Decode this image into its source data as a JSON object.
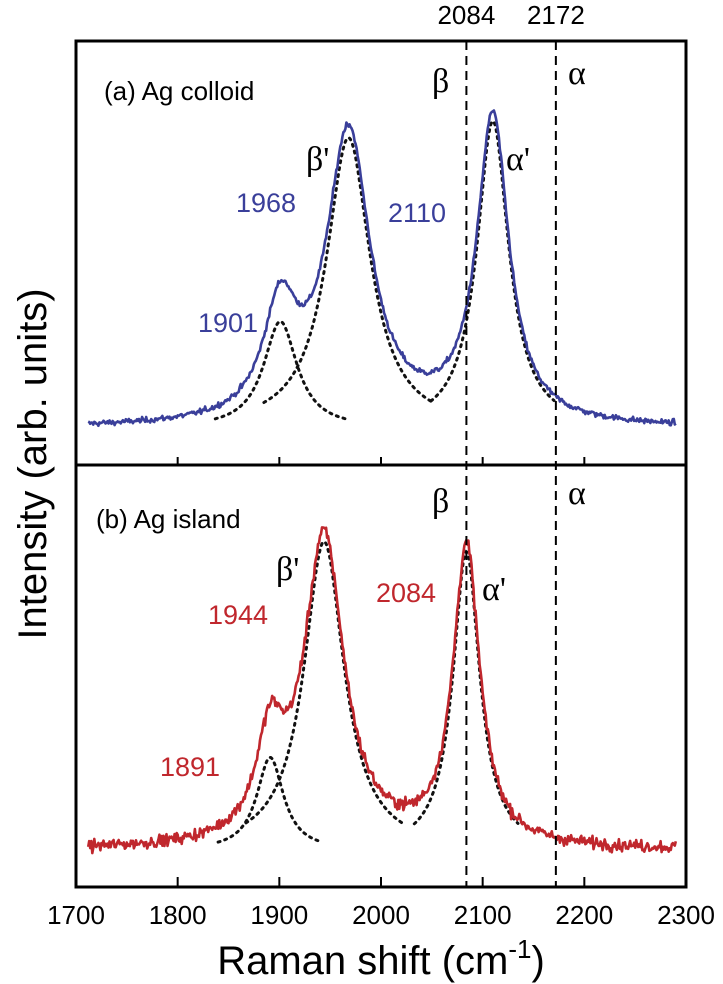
{
  "chart_data": {
    "type": "line",
    "xlabel": "Raman shift (cm",
    "xlabel_superscript": "-1",
    "xlabel_close": ")",
    "ylabel": "Intensity (arb. units)",
    "xlim": [
      1700,
      2300
    ],
    "x_ticks": [
      "1700",
      "1800",
      "1900",
      "2000",
      "2100",
      "2200",
      "2300"
    ],
    "reference_lines": [
      {
        "x": 2084,
        "label": "2084",
        "mode": "β"
      },
      {
        "x": 2172,
        "label": "2172",
        "mode": "α"
      }
    ],
    "panels": [
      {
        "label": "(a) Ag colloid",
        "color": "#3a3f9a",
        "beta_label": "β",
        "alpha_label": "α",
        "beta_prime_label": "β'",
        "alpha_prime_label": "α'",
        "baseline": 0.02,
        "peaks": [
          {
            "center": 1901,
            "width": 20,
            "height": 0.32,
            "label": "1901"
          },
          {
            "center": 1968,
            "width": 26,
            "height": 0.87,
            "label": "1968"
          },
          {
            "center": 2110,
            "width": 19,
            "height": 0.92,
            "label": "2110"
          }
        ],
        "noise": 0.012
      },
      {
        "label": "(b) Ag island",
        "color": "#c0272d",
        "beta_label": "β",
        "alpha_label": "α",
        "beta_prime_label": "β'",
        "alpha_prime_label": "α'",
        "baseline": 0.02,
        "peaks": [
          {
            "center": 1891,
            "width": 16,
            "height": 0.28,
            "label": "1891"
          },
          {
            "center": 1944,
            "width": 24,
            "height": 0.93,
            "label": "1944"
          },
          {
            "center": 2084,
            "width": 16,
            "height": 0.9,
            "label": "2084"
          }
        ],
        "noise": 0.025
      }
    ]
  }
}
